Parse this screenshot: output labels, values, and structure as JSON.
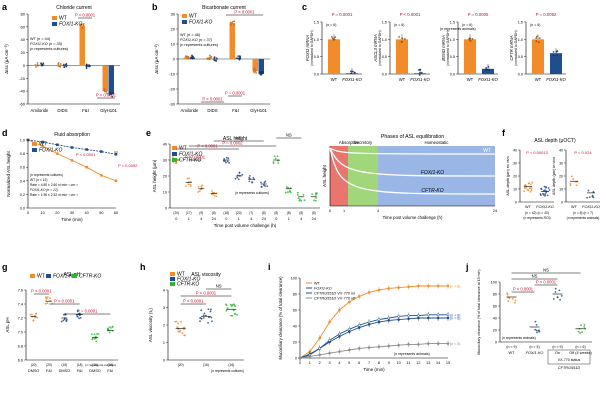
{
  "colors": {
    "wt": "#F28C28",
    "foxi1": "#1F4E8C",
    "cftr": "#2EB82E",
    "sig": "#C8102E",
    "gray": "#8C8C8C"
  },
  "chart_data": [
    {
      "panel": "a",
      "type": "bar",
      "title": "Chloride current",
      "ylabel": "ΔIsc (μA cm⁻²)",
      "ylim": [
        -60,
        80
      ],
      "categories": [
        "Amiloride",
        "DIDS",
        "F&I",
        "GlyH101"
      ],
      "series": [
        {
          "name": "WT",
          "values": [
            1,
            1,
            62,
            -40
          ]
        },
        {
          "name": "FOXI1-KO",
          "values": [
            1,
            0,
            -2,
            -45
          ]
        }
      ],
      "legend": [
        "WT",
        "FOXI1-KO"
      ],
      "annotations": [
        "P < 0.0001",
        "P < 0.0001",
        "WT (n = 44)",
        "FOXI1-KO (n = 35)",
        "(n represents cultures)"
      ]
    },
    {
      "panel": "b",
      "type": "bar",
      "title": "Bicarbonate current",
      "ylabel": "ΔIsc (μA cm⁻²)",
      "ylim": [
        -30,
        30
      ],
      "categories": [
        "Amiloride",
        "DIDS",
        "F&I",
        "GlyH101"
      ],
      "series": [
        {
          "name": "WT",
          "values": [
            1,
            1,
            24,
            -8
          ]
        },
        {
          "name": "FOXI1-KO",
          "values": [
            1,
            0,
            1,
            -10
          ]
        }
      ],
      "legend": [
        "WT",
        "FOXI1-KO"
      ],
      "annotations": [
        "P < 0.0001",
        "P < 0.0001",
        "P = 0.0001",
        "WT (n = 46)",
        "FOXI1-KO (n = 37)",
        "(n represents cultures)"
      ]
    },
    {
      "panel": "c",
      "type": "bar",
      "ylabel_set": [
        "FOXI1 mRNA",
        "ASCL3 mRNA",
        "BSND mRNA",
        "CFTR mRNA"
      ],
      "yunit": "(normalized to GAPDH)",
      "categories": [
        "WT",
        "FOXI1-KO"
      ],
      "subcharts": [
        {
          "ylabel": "FOXI1 mRNA",
          "p": "P = 0.0001",
          "n": "(n = 6)",
          "values": [
            1.0,
            0.02
          ],
          "ylim": [
            0,
            1.5
          ]
        },
        {
          "ylabel": "ASCL3 mRNA",
          "p": "P < 0.0001",
          "n": "(n = 6)",
          "values": [
            1.0,
            0.02
          ],
          "ylim": [
            0,
            1.5
          ]
        },
        {
          "ylabel": "BSND mRNA",
          "p": "P = 0.0005",
          "n": "(n = 6)",
          "values": [
            1.0,
            0.15
          ],
          "ylim": [
            0,
            1.5
          ]
        },
        {
          "ylabel": "CFTR mRNA",
          "p": "P = 0.0092",
          "n": "(n = 6)",
          "values": [
            1.0,
            0.6
          ],
          "ylim": [
            0,
            1.5
          ]
        }
      ],
      "annotations": [
        "(n represents animals)"
      ]
    },
    {
      "panel": "d",
      "type": "line",
      "title": "Fluid absorption",
      "xlabel": "Time (min)",
      "ylabel": "Normalized ASL height",
      "ylim": [
        0,
        1
      ],
      "x": [
        0,
        10,
        20,
        30,
        40,
        50,
        60
      ],
      "series": [
        {
          "name": "WT",
          "values": [
            1,
            0.91,
            0.8,
            0.7,
            0.6,
            0.48,
            0.4
          ]
        },
        {
          "name": "FOXI1-KO",
          "values": [
            1,
            0.97,
            0.93,
            0.89,
            0.86,
            0.83,
            0.79
          ]
        }
      ],
      "annotations": [
        "P < 0.0001",
        "P = 0.0092",
        "(n represents cultures)",
        "WT (n = 12)",
        "Rate = 4.80 ± 2.60 nl min⁻¹ cm⁻²",
        "FOXI1-KO (n = 12)",
        "Rate = 1.96 ± 2.52 nl min⁻¹ cm⁻²"
      ]
    },
    {
      "panel": "e",
      "type": "scatter",
      "title": "ASL height",
      "xlabel": "Time post volume challenge (h)",
      "ylabel": "ASL height (μm)",
      "groups": [
        "0",
        "1",
        "4",
        "24",
        "0",
        "1",
        "4",
        "24",
        "0",
        "1",
        "4",
        "24"
      ],
      "series": [
        {
          "name": "WT",
          "values": [
            30,
            16,
            12,
            9
          ]
        },
        {
          "name": "FOXI1-KO",
          "values": [
            30,
            20,
            18,
            15
          ]
        },
        {
          "name": "CFTR-KO",
          "values": [
            30,
            12,
            7,
            7
          ]
        }
      ],
      "ns": [
        "(20)",
        "(17)",
        "(9)",
        "(8)",
        "(18)",
        "(20)",
        "(7)",
        "(8)",
        "(8)",
        "(8)",
        "(8)",
        "(8)"
      ],
      "annotations": [
        "P < 0.0001",
        "P < 0.0001",
        "P = 0.0002",
        "NS",
        "NS",
        "(n represents cultures)"
      ]
    },
    {
      "panel": "e-schematic",
      "type": "area",
      "title": "Phases of ASL equilibration",
      "xlabel": "Time post volume challenge (h)",
      "ylabel": "ASL height",
      "phases": [
        "Absorptive",
        "Secretory",
        "Homeostatic"
      ],
      "ticks": [
        "0",
        "1",
        "4",
        "24"
      ],
      "labels": [
        "WT",
        "FOXI1-KO",
        "CFTR-KO"
      ]
    },
    {
      "panel": "f",
      "type": "scatter",
      "title": "ASL depth (μOCT)",
      "subcharts": [
        {
          "ylabel": "ASL depth (μm) ex vivo",
          "categories": [
            "WT",
            "FOXI1-KO"
          ],
          "values": [
            12,
            8
          ],
          "p": "P = 0.00013",
          "n": "(n = 42)   (n = 40)",
          "note": "(n represents ROI)"
        },
        {
          "ylabel": "ASL depth (μm) in vivo",
          "categories": [
            "WT",
            "FOXI1-KO"
          ],
          "values": [
            16,
            7
          ],
          "p": "P = 0.024",
          "n": "(n = 8)   (n = 7)",
          "note": "(n represents animals)"
        }
      ]
    },
    {
      "panel": "g",
      "type": "scatter",
      "title": "ASL pH",
      "ylabel": "ASL pH",
      "ylim": [
        6.6,
        7.6
      ],
      "categories": [
        "DMSO",
        "F&I",
        "DMSO",
        "F&I",
        "DMSO",
        "F&I"
      ],
      "series": [
        {
          "name": "WT",
          "values": [
            7.22,
            7.44
          ]
        },
        {
          "name": "FOXI1-KO",
          "values": [
            7.2,
            7.25
          ]
        },
        {
          "name": "CFTR-KO",
          "values": [
            6.92,
            7.02
          ]
        }
      ],
      "ns": [
        "(20)",
        "(20)",
        "(18)",
        "(18)",
        "(16)",
        "(16)"
      ],
      "annotations": [
        "P < 0.0001",
        "P < 0.0001",
        "P = 0.0001",
        "(n represents cultures)"
      ]
    },
    {
      "panel": "h",
      "type": "scatter",
      "title": "ASL viscosity",
      "ylabel": "ASL viscosity (τ₁)",
      "ylim": [
        0,
        4
      ],
      "categories": [
        "WT",
        "FOXI1-KO",
        "CFTR-KO"
      ],
      "values": [
        1.8,
        2.5,
        2.9
      ],
      "ns": [
        "(20)",
        "(16)",
        "(16)"
      ],
      "annotations": [
        "P < 0.0001",
        "P < 0.0001",
        "NS",
        "(n represents cultures)"
      ]
    },
    {
      "panel": "i",
      "type": "line",
      "xlabel": "Time (min)",
      "ylabel": "Mucociliary clearance (% of total clearance)",
      "ylim": [
        0,
        100
      ],
      "x": [
        0,
        1,
        2,
        3,
        4,
        5,
        6,
        7,
        8,
        9,
        10,
        11,
        12,
        13,
        14,
        15
      ],
      "series": [
        {
          "name": "WT",
          "values": [
            0,
            8,
            25,
            45,
            60,
            70,
            77,
            82,
            85,
            87,
            88,
            89,
            90,
            90,
            90,
            90
          ]
        },
        {
          "name": "FOXI1-KO",
          "values": [
            0,
            5,
            12,
            20,
            27,
            33,
            38,
            42,
            45,
            47,
            48,
            49,
            50,
            50,
            50,
            50
          ]
        },
        {
          "name": "CFTR-KO VX-770 on",
          "values": [
            0,
            4,
            12,
            22,
            30,
            36,
            41,
            45,
            48,
            50,
            52,
            53,
            53,
            54,
            54,
            54
          ]
        },
        {
          "name": "CFTR-KO VX-770 off",
          "values": [
            0,
            2,
            4,
            6,
            8,
            10,
            12,
            13,
            14,
            15,
            16,
            17,
            17,
            18,
            18,
            18
          ]
        }
      ],
      "legend": [
        "WT",
        "FOXI1-KO",
        "CFTRG551D VX-770 on",
        "CFTRG551D VX-770 off"
      ],
      "endlabels": [
        "(n = 8)",
        "(n = 6)",
        "(n = 8)",
        "(n = 5)"
      ],
      "annotations": [
        "(n represents animals)"
      ]
    },
    {
      "panel": "j",
      "type": "scatter",
      "ylabel": "Mucociliary clearance (% of total clearance at 15 min)",
      "ylim": [
        0,
        100
      ],
      "categories": [
        "WT",
        "FOXI1-KO",
        "On",
        "Off (4 weeks)"
      ],
      "values": [
        75,
        25,
        80,
        22
      ],
      "ns": [
        "(n = 9)",
        "(n = 5)",
        "(n = 9)",
        "(n = 6)"
      ],
      "group_label": "VX-770 status",
      "group_sub": "CFTRG551D",
      "annotations": [
        "P < 0.0001",
        "P < 0.0001",
        "NS",
        "NS",
        "(n represents animals)"
      ]
    }
  ],
  "labels": {
    "a": "a",
    "b": "b",
    "c": "c",
    "d": "d",
    "e": "e",
    "f": "f",
    "g": "g",
    "h": "h",
    "i": "i",
    "j": "j"
  }
}
